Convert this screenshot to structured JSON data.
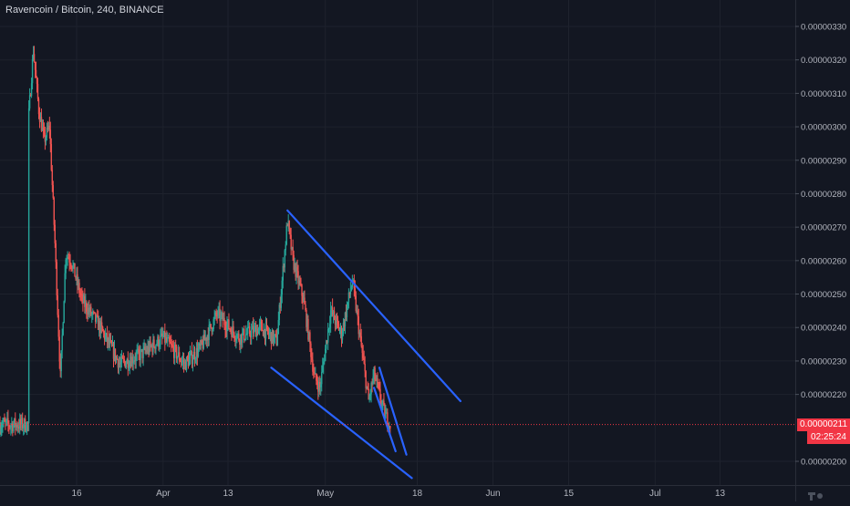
{
  "header": {
    "title": "Ravencoin / Bitcoin, 240, BINANCE"
  },
  "price_axis": {
    "ticks": [
      "0.00000330",
      "0.00000320",
      "0.00000310",
      "0.00000300",
      "0.00000290",
      "0.00000280",
      "0.00000270",
      "0.00000260",
      "0.00000250",
      "0.00000240",
      "0.00000230",
      "0.00000220",
      "0.00000200"
    ],
    "current_price": "0.00000211",
    "countdown": "02:25:24"
  },
  "time_axis": {
    "ticks": [
      "16",
      "Apr",
      "13",
      "May",
      "18",
      "Jun",
      "15",
      "Jul",
      "13"
    ]
  },
  "colors": {
    "background": "#131722",
    "up": "#26a69a",
    "down": "#ef5350",
    "trendline": "#2962ff",
    "price_line": "#f23645",
    "grid": "#1e222d",
    "axis_text": "#b2b5be"
  },
  "chart_data": {
    "type": "candlestick",
    "title": "Ravencoin / Bitcoin, 240, BINANCE",
    "symbol": "RVN/BTC",
    "interval": "240",
    "exchange": "BINANCE",
    "ylim": [
      1.95e-06,
      3.35e-06
    ],
    "last_price": 2.11e-06,
    "approx_price_path": [
      {
        "date": "2020-03-07",
        "price": 3e-06
      },
      {
        "date": "2020-03-08",
        "price": 3.23e-06
      },
      {
        "date": "2020-03-09",
        "price": 3.05e-06
      },
      {
        "date": "2020-03-10",
        "price": 2.96e-06
      },
      {
        "date": "2020-03-11",
        "price": 3e-06
      },
      {
        "date": "2020-03-12",
        "price": 2.65e-06
      },
      {
        "date": "2020-03-13",
        "price": 2.25e-06
      },
      {
        "date": "2020-03-14",
        "price": 2.62e-06
      },
      {
        "date": "2020-03-15",
        "price": 2.6e-06
      },
      {
        "date": "2020-03-17",
        "price": 2.48e-06
      },
      {
        "date": "2020-03-20",
        "price": 2.41e-06
      },
      {
        "date": "2020-03-24",
        "price": 2.29e-06
      },
      {
        "date": "2020-03-28",
        "price": 2.32e-06
      },
      {
        "date": "2020-04-01",
        "price": 2.37e-06
      },
      {
        "date": "2020-04-05",
        "price": 2.29e-06
      },
      {
        "date": "2020-04-08",
        "price": 2.34e-06
      },
      {
        "date": "2020-04-11",
        "price": 2.44e-06
      },
      {
        "date": "2020-04-15",
        "price": 2.37e-06
      },
      {
        "date": "2020-04-19",
        "price": 2.4e-06
      },
      {
        "date": "2020-04-22",
        "price": 2.36e-06
      },
      {
        "date": "2020-04-24",
        "price": 2.72e-06
      },
      {
        "date": "2020-04-25",
        "price": 2.6e-06
      },
      {
        "date": "2020-04-27",
        "price": 2.48e-06
      },
      {
        "date": "2020-04-29",
        "price": 2.25e-06
      },
      {
        "date": "2020-04-30",
        "price": 2.22e-06
      },
      {
        "date": "2020-05-02",
        "price": 2.45e-06
      },
      {
        "date": "2020-05-04",
        "price": 2.38e-06
      },
      {
        "date": "2020-05-06",
        "price": 2.54e-06
      },
      {
        "date": "2020-05-08",
        "price": 2.3e-06
      },
      {
        "date": "2020-05-09",
        "price": 2.18e-06
      },
      {
        "date": "2020-05-10",
        "price": 2.26e-06
      },
      {
        "date": "2020-05-12",
        "price": 2.14e-06
      },
      {
        "date": "2020-05-13",
        "price": 2.11e-06
      }
    ],
    "drawings": [
      {
        "type": "trendline",
        "from": {
          "date": "2020-04-24",
          "price": 2.75e-06
        },
        "to": {
          "date": "2020-05-26",
          "price": 2.18e-06
        }
      },
      {
        "type": "trendline",
        "from": {
          "date": "2020-04-21",
          "price": 2.28e-06
        },
        "to": {
          "date": "2020-05-17",
          "price": 1.95e-06
        }
      },
      {
        "type": "trendline",
        "from": {
          "date": "2020-05-11",
          "price": 2.28e-06
        },
        "to": {
          "date": "2020-05-16",
          "price": 2.02e-06
        }
      },
      {
        "type": "trendline",
        "from": {
          "date": "2020-05-10",
          "price": 2.22e-06
        },
        "to": {
          "date": "2020-05-14",
          "price": 2.03e-06
        }
      }
    ]
  }
}
